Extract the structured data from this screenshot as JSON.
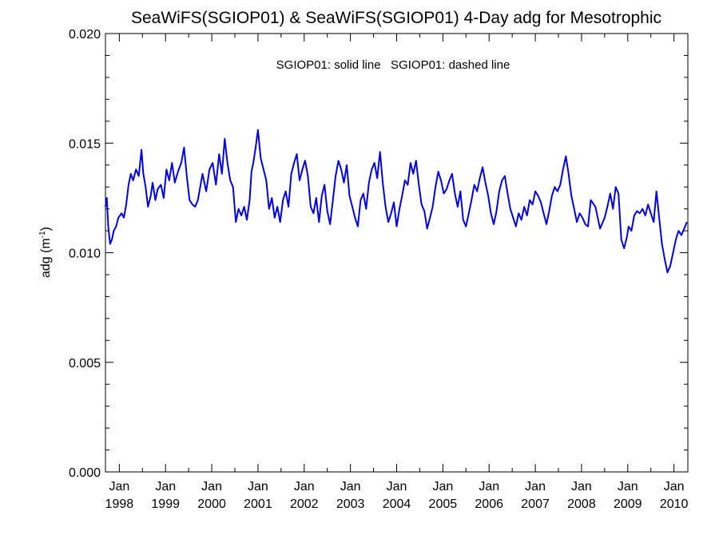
{
  "chart_data": {
    "type": "line",
    "title": "SeaWiFS(SGIOP01) & SeaWiFS(SGIOP01) 4-Day adg for Mesotrophic",
    "ylabel_main": "adg (m",
    "ylabel_sup": "-1",
    "ylabel_close": ")",
    "annotation": "SGIOP01: solid line   SGIOP01: dashed line",
    "ylim": [
      0.0,
      0.02
    ],
    "xlim": [
      1997.7,
      2010.3
    ],
    "y_ticks": [
      "0.000",
      "0.005",
      "0.010",
      "0.015",
      "0.020"
    ],
    "y_tick_values": [
      0.0,
      0.005,
      0.01,
      0.015,
      0.02
    ],
    "x_ticks": [
      {
        "month": "Jan",
        "year": "1998",
        "value": 1998
      },
      {
        "month": "Jan",
        "year": "1999",
        "value": 1999
      },
      {
        "month": "Jan",
        "year": "2000",
        "value": 2000
      },
      {
        "month": "Jan",
        "year": "2001",
        "value": 2001
      },
      {
        "month": "Jan",
        "year": "2002",
        "value": 2002
      },
      {
        "month": "Jan",
        "year": "2003",
        "value": 2003
      },
      {
        "month": "Jan",
        "year": "2004",
        "value": 2004
      },
      {
        "month": "Jan",
        "year": "2005",
        "value": 2005
      },
      {
        "month": "Jan",
        "year": "2006",
        "value": 2006
      },
      {
        "month": "Jan",
        "year": "2007",
        "value": 2007
      },
      {
        "month": "Jan",
        "year": "2008",
        "value": 2008
      },
      {
        "month": "Jan",
        "year": "2009",
        "value": 2009
      },
      {
        "month": "Jan",
        "year": "2010",
        "value": 2010
      }
    ],
    "series": [
      {
        "color": "#0000ee",
        "x": [
          1997.7,
          1997.73,
          1997.76,
          1997.8,
          1997.84,
          1997.88,
          1997.93,
          1997.98,
          1998.05,
          1998.1,
          1998.15,
          1998.2,
          1998.25,
          1998.3,
          1998.36,
          1998.42,
          1998.48,
          1998.52,
          1998.57,
          1998.62,
          1998.68,
          1998.72,
          1998.78,
          1998.83,
          1998.9,
          1998.96,
          1999.02,
          1999.08,
          1999.14,
          1999.2,
          1999.27,
          1999.34,
          1999.4,
          1999.46,
          1999.52,
          1999.58,
          1999.64,
          1999.7,
          1999.75,
          1999.8,
          1999.88,
          1999.95,
          2000.02,
          2000.09,
          2000.16,
          2000.22,
          2000.28,
          2000.34,
          2000.4,
          2000.46,
          2000.52,
          2000.58,
          2000.64,
          2000.7,
          2000.76,
          2000.82,
          2000.86,
          2000.9,
          2000.95,
          2001.0,
          2001.06,
          2001.12,
          2001.18,
          2001.24,
          2001.3,
          2001.36,
          2001.42,
          2001.48,
          2001.54,
          2001.6,
          2001.66,
          2001.72,
          2001.78,
          2001.84,
          2001.9,
          2001.96,
          2002.02,
          2002.08,
          2002.14,
          2002.2,
          2002.26,
          2002.32,
          2002.38,
          2002.44,
          2002.5,
          2002.56,
          2002.62,
          2002.68,
          2002.74,
          2002.8,
          2002.86,
          2002.92,
          2002.98,
          2003.04,
          2003.1,
          2003.16,
          2003.22,
          2003.28,
          2003.34,
          2003.4,
          2003.46,
          2003.52,
          2003.58,
          2003.64,
          2003.7,
          2003.76,
          2003.82,
          2003.88,
          2003.94,
          2004.0,
          2004.06,
          2004.12,
          2004.18,
          2004.24,
          2004.3,
          2004.36,
          2004.42,
          2004.48,
          2004.54,
          2004.6,
          2004.66,
          2004.72,
          2004.78,
          2004.84,
          2004.9,
          2004.96,
          2005.02,
          2005.08,
          2005.14,
          2005.2,
          2005.26,
          2005.32,
          2005.38,
          2005.44,
          2005.5,
          2005.56,
          2005.62,
          2005.68,
          2005.74,
          2005.8,
          2005.86,
          2005.92,
          2005.98,
          2006.04,
          2006.1,
          2006.16,
          2006.22,
          2006.28,
          2006.34,
          2006.4,
          2006.46,
          2006.52,
          2006.58,
          2006.64,
          2006.7,
          2006.76,
          2006.82,
          2006.88,
          2006.94,
          2007.0,
          2007.06,
          2007.12,
          2007.18,
          2007.24,
          2007.3,
          2007.36,
          2007.42,
          2007.48,
          2007.54,
          2007.6,
          2007.66,
          2007.72,
          2007.78,
          2007.84,
          2007.9,
          2007.96,
          2008.02,
          2008.08,
          2008.14,
          2008.2,
          2008.3,
          2008.4,
          2008.5,
          2008.56,
          2008.62,
          2008.68,
          2008.74,
          2008.8,
          2008.86,
          2008.92,
          2008.98,
          2009.02,
          2009.08,
          2009.14,
          2009.2,
          2009.26,
          2009.32,
          2009.38,
          2009.44,
          2009.5,
          2009.56,
          2009.62,
          2009.68,
          2009.74,
          2009.8,
          2009.86,
          2009.92,
          2009.98,
          2010.04,
          2010.1,
          2010.16,
          2010.22,
          2010.28
        ],
        "y": [
          0.0121,
          0.0125,
          0.0112,
          0.0104,
          0.0106,
          0.011,
          0.0112,
          0.0116,
          0.0118,
          0.0116,
          0.0122,
          0.0131,
          0.0136,
          0.0133,
          0.0138,
          0.0135,
          0.0147,
          0.0136,
          0.013,
          0.0121,
          0.0126,
          0.0132,
          0.0124,
          0.0129,
          0.0131,
          0.0125,
          0.0138,
          0.0133,
          0.0141,
          0.0132,
          0.0137,
          0.0141,
          0.0148,
          0.0135,
          0.0124,
          0.0122,
          0.0121,
          0.0124,
          0.013,
          0.0136,
          0.0128,
          0.0138,
          0.0141,
          0.0131,
          0.0145,
          0.0136,
          0.0152,
          0.0141,
          0.0133,
          0.013,
          0.0114,
          0.012,
          0.0117,
          0.0121,
          0.0115,
          0.0124,
          0.0137,
          0.0141,
          0.0148,
          0.0156,
          0.0143,
          0.0138,
          0.0133,
          0.012,
          0.0125,
          0.0116,
          0.0121,
          0.0114,
          0.0124,
          0.0128,
          0.0121,
          0.0136,
          0.0141,
          0.0145,
          0.0133,
          0.0138,
          0.0142,
          0.0135,
          0.0121,
          0.0118,
          0.0125,
          0.0114,
          0.0126,
          0.0131,
          0.0119,
          0.0113,
          0.0124,
          0.0135,
          0.0142,
          0.0138,
          0.0132,
          0.014,
          0.0126,
          0.0121,
          0.0116,
          0.0112,
          0.0124,
          0.0127,
          0.012,
          0.0132,
          0.0138,
          0.0141,
          0.0134,
          0.0146,
          0.0132,
          0.0121,
          0.0114,
          0.0118,
          0.0123,
          0.0112,
          0.012,
          0.0126,
          0.0133,
          0.0131,
          0.0141,
          0.0136,
          0.0142,
          0.0131,
          0.0122,
          0.0119,
          0.0111,
          0.0116,
          0.0121,
          0.013,
          0.0137,
          0.0133,
          0.0127,
          0.0129,
          0.0133,
          0.0136,
          0.0127,
          0.0121,
          0.0128,
          0.0115,
          0.0112,
          0.0118,
          0.0124,
          0.0131,
          0.0128,
          0.0134,
          0.0139,
          0.0132,
          0.0126,
          0.0118,
          0.0113,
          0.0119,
          0.0128,
          0.0133,
          0.0135,
          0.0127,
          0.012,
          0.0116,
          0.0112,
          0.0118,
          0.0115,
          0.0121,
          0.0117,
          0.0124,
          0.0122,
          0.0128,
          0.0126,
          0.0123,
          0.0118,
          0.0113,
          0.0119,
          0.0126,
          0.013,
          0.0128,
          0.0131,
          0.0138,
          0.0144,
          0.0136,
          0.0126,
          0.012,
          0.0114,
          0.0118,
          0.0116,
          0.0113,
          0.0112,
          0.0124,
          0.0121,
          0.0111,
          0.0116,
          0.0121,
          0.0127,
          0.012,
          0.013,
          0.0127,
          0.0106,
          0.0102,
          0.0107,
          0.0112,
          0.011,
          0.0117,
          0.0119,
          0.0118,
          0.012,
          0.0117,
          0.0122,
          0.0118,
          0.0114,
          0.0128,
          0.0116,
          0.0104,
          0.0097,
          0.0091,
          0.0094,
          0.01,
          0.0106,
          0.011,
          0.0108,
          0.0111,
          0.0114
        ]
      }
    ]
  }
}
